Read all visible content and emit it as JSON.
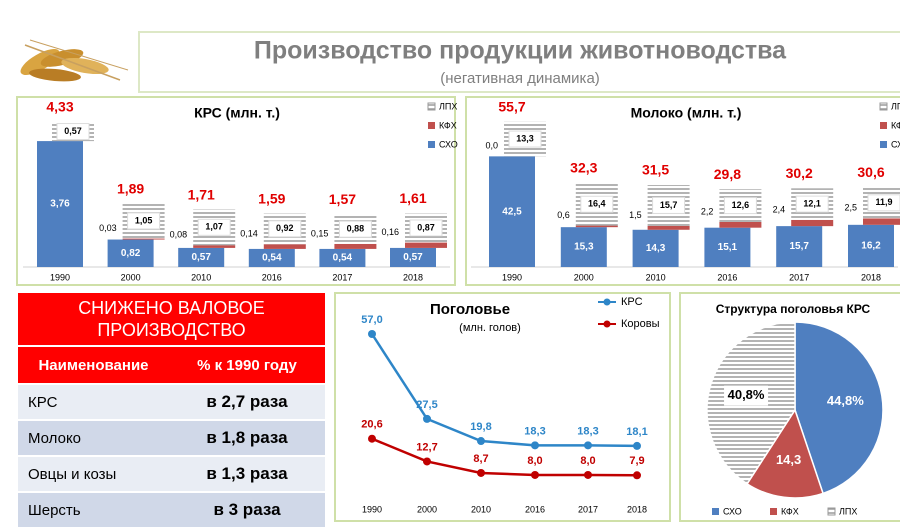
{
  "header": {
    "title": "Производство продукции животноводства",
    "subtitle": "(негативная динамика)"
  },
  "chart_data": [
    {
      "type": "bar",
      "stacked": true,
      "title": "КРС (млн. т.)",
      "categories": [
        "1990",
        "2000",
        "2010",
        "2016",
        "2017",
        "2018"
      ],
      "series": [
        {
          "name": "СХО",
          "color": "#4f7fc0",
          "values": [
            3.76,
            0.82,
            0.57,
            0.54,
            0.54,
            0.57
          ],
          "value_labels": [
            "3,76",
            "0,82",
            "0,57",
            "0,54",
            "0,54",
            "0,57"
          ]
        },
        {
          "name": "КФХ",
          "color": "#c0504d",
          "values": [
            null,
            0.03,
            0.08,
            0.14,
            0.15,
            0.16
          ],
          "value_labels": [
            null,
            "0,03",
            "0,08",
            "0,14",
            "0,15",
            "0,16"
          ]
        },
        {
          "name": "ЛПХ",
          "color": "#9a9a9a",
          "hatched": true,
          "values": [
            0.57,
            1.05,
            1.07,
            0.92,
            0.88,
            0.87
          ],
          "value_labels": [
            "0,57",
            "1,05",
            "1,07",
            "0,92",
            "0,88",
            "0,87"
          ]
        }
      ],
      "totals": [
        4.33,
        1.89,
        1.71,
        1.59,
        1.57,
        1.61
      ],
      "total_labels": [
        "4,33",
        "1,89",
        "1,71",
        "1,59",
        "1,57",
        "1,61"
      ]
    },
    {
      "type": "bar",
      "stacked": true,
      "title": "Молоко (млн. т.)",
      "categories": [
        "1990",
        "2000",
        "2010",
        "2016",
        "2017",
        "2018"
      ],
      "series": [
        {
          "name": "СХО",
          "color": "#4f7fc0",
          "values": [
            42.5,
            15.3,
            14.3,
            15.1,
            15.7,
            16.2
          ],
          "value_labels": [
            "42,5",
            "15,3",
            "14,3",
            "15,1",
            "15,7",
            "16,2"
          ]
        },
        {
          "name": "КФХ",
          "color": "#c0504d",
          "values": [
            0.0,
            0.6,
            1.5,
            2.2,
            2.4,
            2.5
          ],
          "value_labels": [
            "0,0",
            "0,6",
            "1,5",
            "2,2",
            "2,4",
            "2,5"
          ]
        },
        {
          "name": "ЛПХ",
          "color": "#9a9a9a",
          "hatched": true,
          "values": [
            13.3,
            16.4,
            15.7,
            12.6,
            12.1,
            11.9
          ],
          "value_labels": [
            "13,3",
            "16,4",
            "15,7",
            "12,6",
            "12,1",
            "11,9"
          ]
        }
      ],
      "totals": [
        55.7,
        32.3,
        31.5,
        29.8,
        30.2,
        30.6
      ],
      "total_labels": [
        "55,7",
        "32,3",
        "31,5",
        "29,8",
        "30,2",
        "30,6"
      ]
    },
    {
      "type": "line",
      "title": "Поголовье",
      "subtitle": "(млн. голов)",
      "categories": [
        "1990",
        "2000",
        "2010",
        "2016",
        "2017",
        "2018"
      ],
      "series": [
        {
          "name": "КРС",
          "color": "#2e86c8",
          "values": [
            57.0,
            27.5,
            19.8,
            18.3,
            18.3,
            18.1
          ],
          "value_labels": [
            "57,0",
            "27,5",
            "19,8",
            "18,3",
            "18,3",
            "18,1"
          ]
        },
        {
          "name": "Коровы",
          "color": "#c00000",
          "values": [
            20.6,
            12.7,
            8.7,
            8.0,
            8.0,
            7.9
          ],
          "value_labels": [
            "20,6",
            "12,7",
            "8,7",
            "8,0",
            "8,0",
            "7,9"
          ]
        }
      ]
    },
    {
      "type": "pie",
      "title": "Структура поголовья КРС",
      "categories": [
        "СХО",
        "КФХ",
        "ЛПХ"
      ],
      "values": [
        44.8,
        14.3,
        40.8
      ],
      "value_labels": [
        "44,8%",
        "14,3",
        "40,8%"
      ],
      "colors": [
        "#4f7fc0",
        "#c0504d",
        "#9a9a9a"
      ],
      "hatched": [
        false,
        false,
        true
      ]
    }
  ],
  "table": {
    "title": "СНИЖЕНО ВАЛОВОЕ ПРОИЗВОДСТВО",
    "columns": [
      "Наименование",
      "% к 1990 году"
    ],
    "rows": [
      [
        "КРС",
        "в 2,7 раза"
      ],
      [
        "Молоко",
        "в 1,8 раза"
      ],
      [
        "Овцы и козы",
        "в 1,3 раза"
      ],
      [
        "Шерсть",
        "в 3 раза"
      ]
    ]
  }
}
